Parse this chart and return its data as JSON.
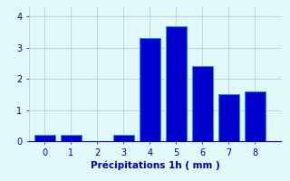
{
  "xlabel": "Précipitations 1h ( mm )",
  "bar_centers": [
    0,
    1,
    2,
    3,
    4,
    5,
    6,
    7,
    8
  ],
  "bar_values": [
    0.2,
    0.2,
    0.0,
    0.2,
    3.3,
    3.7,
    2.4,
    1.5,
    1.6
  ],
  "bar_color": "#0000cc",
  "bar_edge_color": "#0099ff",
  "bar_width": 0.8,
  "xlim": [
    -0.6,
    9.0
  ],
  "ylim": [
    0,
    4.3
  ],
  "yticks": [
    0,
    1,
    2,
    3,
    4
  ],
  "xticks": [
    0,
    1,
    2,
    3,
    4,
    5,
    6,
    7,
    8
  ],
  "background_color": "#e0f8f8",
  "grid_color": "#b0c8c8",
  "tick_label_color": "#0000aa",
  "xlabel_color": "#0000aa",
  "xlabel_fontsize": 7.5,
  "tick_fontsize": 7
}
